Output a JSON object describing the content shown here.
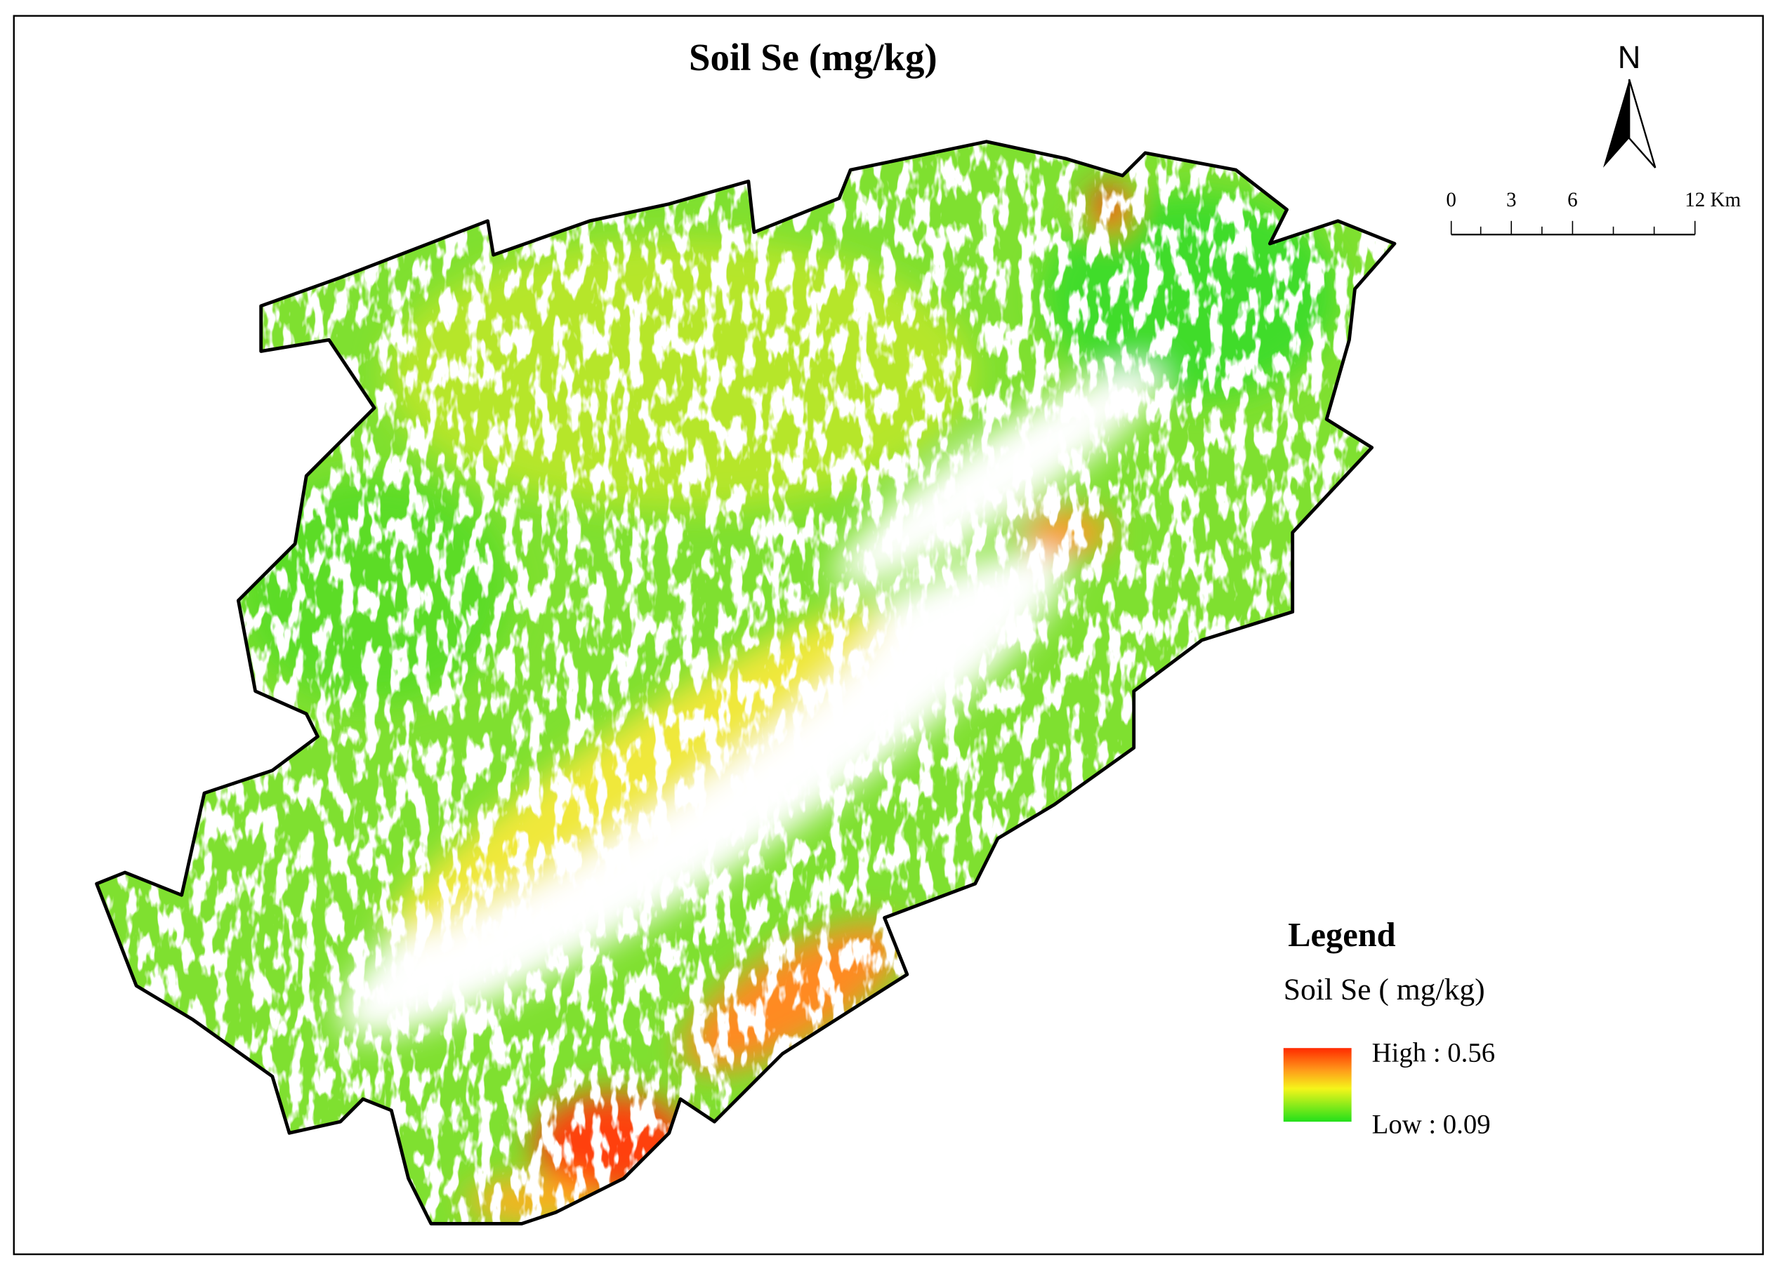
{
  "title": "Soil Se (mg/kg)",
  "north_arrow": {
    "label": "N"
  },
  "scale_bar": {
    "labels": [
      "0",
      "3",
      "6",
      "12 Km"
    ]
  },
  "legend": {
    "title": "Legend",
    "subtitle": "Soil Se ( mg/kg)",
    "high": "High : 0.56",
    "low": "Low : 0.09"
  }
}
